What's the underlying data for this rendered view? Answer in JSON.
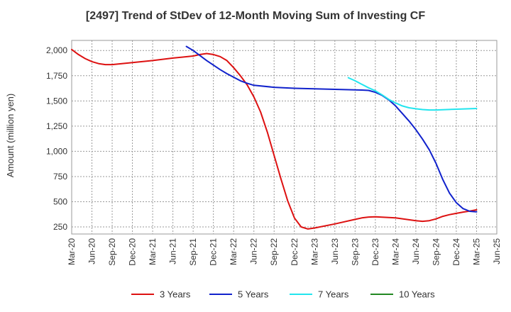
{
  "chart_data": {
    "type": "line",
    "title": "[2497]  Trend of StDev of 12-Month Moving Sum of Investing CF",
    "xlabel": "",
    "ylabel": "Amount (million yen)",
    "ylim": [
      180,
      2100
    ],
    "y_ticks": [
      250,
      500,
      750,
      1000,
      1250,
      1500,
      1750,
      2000
    ],
    "y_tick_labels": [
      "250",
      "500",
      "750",
      "1,000",
      "1,250",
      "1,500",
      "1,750",
      "2,000"
    ],
    "x_tick_labels": [
      "Mar-20",
      "Jun-20",
      "Sep-20",
      "Dec-20",
      "Mar-21",
      "Jun-21",
      "Sep-21",
      "Dec-21",
      "Mar-22",
      "Jun-22",
      "Sep-22",
      "Dec-22",
      "Mar-23",
      "Jun-23",
      "Sep-23",
      "Dec-23",
      "Mar-24",
      "Jun-24",
      "Sep-24",
      "Dec-24",
      "Mar-25",
      "Jun-25"
    ],
    "grid": true,
    "legend_position": "bottom",
    "series": [
      {
        "name": "3 Years",
        "color": "#dd1111",
        "points": [
          [
            "Mar-20",
            2010
          ],
          [
            "Apr-20",
            1960
          ],
          [
            "May-20",
            1920
          ],
          [
            "Jun-20",
            1890
          ],
          [
            "Jul-20",
            1870
          ],
          [
            "Aug-20",
            1860
          ],
          [
            "Sep-20",
            1860
          ],
          [
            "Dec-20",
            1880
          ],
          [
            "Mar-21",
            1900
          ],
          [
            "Jun-21",
            1925
          ],
          [
            "Sep-21",
            1945
          ],
          [
            "Oct-21",
            1960
          ],
          [
            "Nov-21",
            1970
          ],
          [
            "Dec-21",
            1960
          ],
          [
            "Jan-22",
            1940
          ],
          [
            "Feb-22",
            1900
          ],
          [
            "Mar-22",
            1830
          ],
          [
            "Apr-22",
            1750
          ],
          [
            "May-22",
            1660
          ],
          [
            "Jun-22",
            1540
          ],
          [
            "Jul-22",
            1390
          ],
          [
            "Aug-22",
            1190
          ],
          [
            "Sep-22",
            960
          ],
          [
            "Oct-22",
            730
          ],
          [
            "Nov-22",
            510
          ],
          [
            "Dec-22",
            340
          ],
          [
            "Jan-23",
            250
          ],
          [
            "Feb-23",
            230
          ],
          [
            "Mar-23",
            240
          ],
          [
            "Jun-23",
            280
          ],
          [
            "Sep-23",
            325
          ],
          [
            "Oct-23",
            340
          ],
          [
            "Nov-23",
            348
          ],
          [
            "Dec-23",
            350
          ],
          [
            "Mar-24",
            340
          ],
          [
            "Jun-24",
            312
          ],
          [
            "Jul-24",
            306
          ],
          [
            "Aug-24",
            312
          ],
          [
            "Sep-24",
            330
          ],
          [
            "Oct-24",
            355
          ],
          [
            "Nov-24",
            372
          ],
          [
            "Dec-24",
            385
          ],
          [
            "Jan-25",
            397
          ],
          [
            "Feb-25",
            408
          ],
          [
            "Mar-25",
            420
          ]
        ]
      },
      {
        "name": "5 Years",
        "color": "#1122cc",
        "points": [
          [
            "Aug-21",
            2040
          ],
          [
            "Sep-21",
            2000
          ],
          [
            "Oct-21",
            1950
          ],
          [
            "Nov-21",
            1900
          ],
          [
            "Dec-21",
            1855
          ],
          [
            "Jan-22",
            1810
          ],
          [
            "Feb-22",
            1770
          ],
          [
            "Mar-22",
            1735
          ],
          [
            "Apr-22",
            1700
          ],
          [
            "May-22",
            1675
          ],
          [
            "Jun-22",
            1655
          ],
          [
            "Sep-22",
            1635
          ],
          [
            "Dec-22",
            1625
          ],
          [
            "Mar-23",
            1620
          ],
          [
            "Jun-23",
            1615
          ],
          [
            "Sep-23",
            1610
          ],
          [
            "Oct-23",
            1608
          ],
          [
            "Nov-23",
            1604
          ],
          [
            "Dec-23",
            1585
          ],
          [
            "Jan-24",
            1555
          ],
          [
            "Feb-24",
            1510
          ],
          [
            "Mar-24",
            1450
          ],
          [
            "Apr-24",
            1375
          ],
          [
            "May-24",
            1300
          ],
          [
            "Jun-24",
            1215
          ],
          [
            "Jul-24",
            1120
          ],
          [
            "Aug-24",
            1015
          ],
          [
            "Sep-24",
            880
          ],
          [
            "Oct-24",
            720
          ],
          [
            "Nov-24",
            585
          ],
          [
            "Dec-24",
            490
          ],
          [
            "Jan-25",
            432
          ],
          [
            "Feb-25",
            405
          ],
          [
            "Mar-25",
            400
          ]
        ]
      },
      {
        "name": "7 Years",
        "color": "#22e5ee",
        "points": [
          [
            "Aug-23",
            1730
          ],
          [
            "Sep-23",
            1700
          ],
          [
            "Oct-23",
            1665
          ],
          [
            "Nov-23",
            1630
          ],
          [
            "Dec-23",
            1600
          ],
          [
            "Jan-24",
            1560
          ],
          [
            "Feb-24",
            1515
          ],
          [
            "Mar-24",
            1480
          ],
          [
            "Apr-24",
            1450
          ],
          [
            "May-24",
            1432
          ],
          [
            "Jun-24",
            1422
          ],
          [
            "Jul-24",
            1414
          ],
          [
            "Aug-24",
            1410
          ],
          [
            "Sep-24",
            1410
          ],
          [
            "Dec-24",
            1418
          ],
          [
            "Mar-25",
            1425
          ]
        ]
      },
      {
        "name": "10 Years",
        "color": "#228822",
        "points": []
      }
    ]
  }
}
